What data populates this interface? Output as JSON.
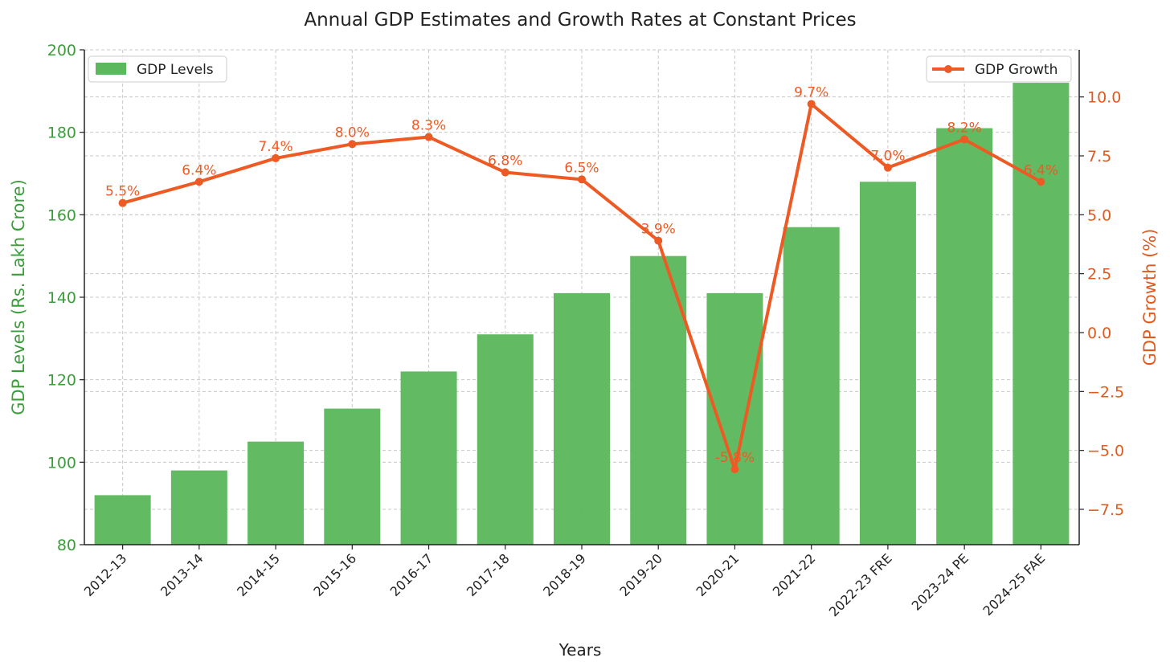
{
  "chart_data": {
    "type": "bar",
    "title": "Annual GDP Estimates and Growth Rates at Constant Prices",
    "xlabel": "Years",
    "ylabel_left": "GDP Levels (Rs. Lakh Crore)",
    "ylabel_right": "GDP Growth (%)",
    "categories": [
      "2012-13",
      "2013-14",
      "2014-15",
      "2015-16",
      "2016-17",
      "2017-18",
      "2018-19",
      "2019-20",
      "2020-21",
      "2021-22",
      "2022-23 FRE",
      "2023-24 PE",
      "2024-25 FAE"
    ],
    "series": [
      {
        "name": "GDP Levels",
        "type": "bar",
        "axis": "left",
        "color": "#5cb85c",
        "values": [
          92,
          98,
          105,
          113,
          122,
          131,
          141,
          150,
          141,
          157,
          168,
          181,
          192
        ]
      },
      {
        "name": "GDP Growth",
        "type": "line",
        "axis": "right",
        "color": "#ee5a24",
        "values": [
          5.5,
          6.4,
          7.4,
          8.0,
          8.3,
          6.8,
          6.5,
          3.9,
          -5.8,
          9.7,
          7.0,
          8.2,
          6.4
        ],
        "labels": [
          "5.5%",
          "6.4%",
          "7.4%",
          "8.0%",
          "8.3%",
          "6.8%",
          "6.5%",
          "3.9%",
          "-5.8%",
          "9.7%",
          "7.0%",
          "8.2%",
          "6.4%"
        ]
      }
    ],
    "ylim_left": [
      80,
      200
    ],
    "yticks_left": [
      "80",
      "100",
      "120",
      "140",
      "160",
      "180",
      "200"
    ],
    "ylim_right": [
      -9,
      12
    ],
    "yticks_right": [
      {
        "value": -7.5,
        "label": "−7.5"
      },
      {
        "value": -5.0,
        "label": "−5.0"
      },
      {
        "value": -2.5,
        "label": "−2.5"
      },
      {
        "value": 0.0,
        "label": "0.0"
      },
      {
        "value": 2.5,
        "label": "2.5"
      },
      {
        "value": 5.0,
        "label": "5.0"
      },
      {
        "value": 7.5,
        "label": "7.5"
      },
      {
        "value": 10.0,
        "label": "10.0"
      }
    ],
    "grid": true,
    "legend_left": {
      "placement": "top-left",
      "label": "GDP Levels"
    },
    "legend_right": {
      "placement": "top-right",
      "label": "GDP Growth"
    },
    "colors": {
      "left_axis": "#3a9e3a",
      "right_axis": "#e05a1e",
      "bar": "#5cb85c",
      "line": "#ee5a24"
    }
  }
}
